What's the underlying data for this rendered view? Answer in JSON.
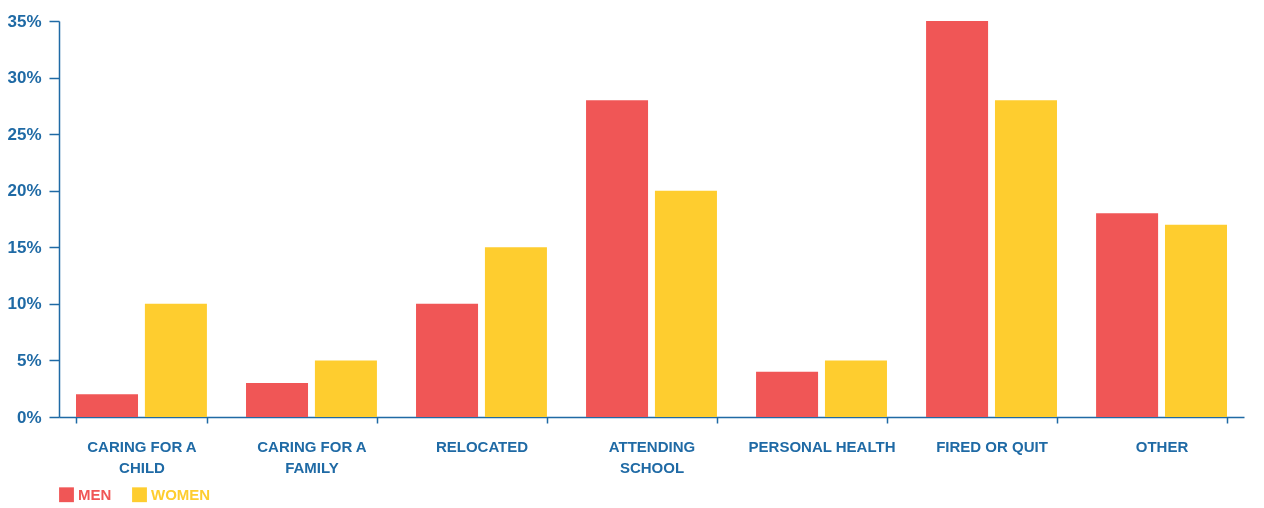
{
  "chart_data": {
    "type": "bar",
    "categories": [
      "CARING FOR A CHILD",
      "CARING FOR A FAMILY",
      "RELOCATED",
      "ATTENDING SCHOOL",
      "PERSONAL HEALTH",
      "FIRED OR QUIT",
      "OTHER"
    ],
    "series": [
      {
        "name": "MEN",
        "color": "#f05656",
        "values": [
          2,
          3,
          10,
          28,
          4,
          35,
          18
        ]
      },
      {
        "name": "WOMEN",
        "color": "#fecd2f",
        "values": [
          10,
          5,
          15,
          20,
          5,
          28,
          17
        ]
      }
    ],
    "ylim": [
      0,
      35
    ],
    "yticks": [
      {
        "value": 0,
        "label": "0%"
      },
      {
        "value": 5,
        "label": "5%"
      },
      {
        "value": 10,
        "label": "10%"
      },
      {
        "value": 15,
        "label": "15%"
      },
      {
        "value": 20,
        "label": "20%"
      },
      {
        "value": 25,
        "label": "25%"
      },
      {
        "value": 30,
        "label": "30%"
      },
      {
        "value": 35,
        "label": "35%"
      }
    ],
    "grid": false,
    "legend": "bottom"
  }
}
